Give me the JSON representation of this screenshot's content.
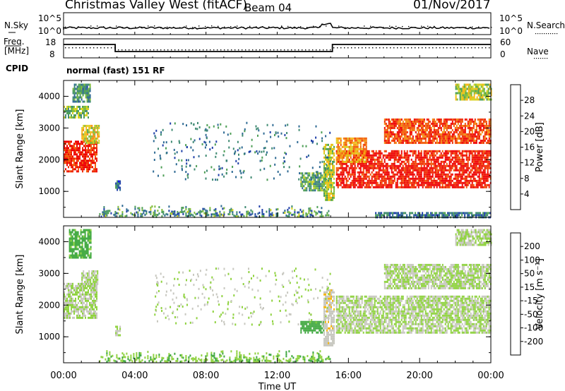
{
  "header": {
    "title": "Christmas Valley West (fitACF)",
    "beam": "Beam 04",
    "date": "01/Nov/2017"
  },
  "top_panels": {
    "nsky_label": "N.Sky",
    "nsky_ticks": [
      "10^5",
      "10^0"
    ],
    "nsearch_label": "N.Search",
    "nsearch_ticks": [
      "10^5",
      "10^0"
    ],
    "freq_label": "Freq.",
    "freq_unit": "[MHz]",
    "freq_ticks": [
      "18",
      "8"
    ],
    "nave_label": "Nave",
    "nave_ticks": [
      "60",
      "0"
    ],
    "cpid_label": "CPID",
    "cpid_value": "normal (fast) 151 RF"
  },
  "chart_data": [
    {
      "type": "heatmap",
      "panel": "power",
      "ylabel": "Slant Range [km]",
      "ylim": [
        180,
        4500
      ],
      "yticks": [
        "1000",
        "2000",
        "3000",
        "4000"
      ],
      "xlabel": "Time UT",
      "xlim": [
        0,
        24
      ],
      "xticks": [
        "00:00",
        "04:00",
        "08:00",
        "12:00",
        "16:00",
        "20:00",
        "00:00"
      ],
      "colorbar": {
        "label": "Power [dB]",
        "min": 0,
        "max": 32,
        "ticks": [
          "4",
          "8",
          "12",
          "16",
          "20",
          "24",
          "28"
        ],
        "colors": [
          "#0000ff",
          "#1f3fa8",
          "#2e6a93",
          "#3f8a72",
          "#4d9e55",
          "#7fbd3a",
          "#d6d21e",
          "#f5b614",
          "#f48a0c",
          "#f25a06",
          "#ef2a02",
          "#ee0000"
        ]
      },
      "blobs": [
        {
          "t0": 0.0,
          "t1": 1.9,
          "r0": 1600,
          "r1": 2600,
          "p": 29
        },
        {
          "t0": 1.0,
          "t1": 2.0,
          "r0": 2500,
          "r1": 3100,
          "p": 18
        },
        {
          "t0": 0.0,
          "t1": 1.4,
          "r0": 3300,
          "r1": 3700,
          "p": 14
        },
        {
          "t0": 0.5,
          "t1": 1.5,
          "r0": 3800,
          "r1": 4400,
          "p": 10
        },
        {
          "t0": 2.9,
          "t1": 3.2,
          "r0": 1050,
          "r1": 1350,
          "p": 7
        },
        {
          "t0": 13.3,
          "t1": 14.8,
          "r0": 1000,
          "r1": 1600,
          "p": 12
        },
        {
          "t0": 14.6,
          "t1": 15.2,
          "r0": 700,
          "r1": 2500,
          "p": 16
        },
        {
          "t0": 15.3,
          "t1": 24.0,
          "r0": 1100,
          "r1": 2300,
          "p": 30
        },
        {
          "t0": 15.3,
          "t1": 17.0,
          "r0": 1900,
          "r1": 2700,
          "p": 22
        },
        {
          "t0": 18.0,
          "t1": 24.0,
          "r0": 2500,
          "r1": 3300,
          "p": 27
        },
        {
          "t0": 22.0,
          "t1": 24.0,
          "r0": 3900,
          "r1": 4400,
          "p": 16
        },
        {
          "t0": 17.5,
          "t1": 24.0,
          "r0": 200,
          "r1": 350,
          "p": 8
        }
      ],
      "ground_scatter_band": {
        "t0": 2.0,
        "t1": 15.0,
        "r0": 180,
        "r1": 650,
        "p": 10
      }
    },
    {
      "type": "heatmap",
      "panel": "velocity",
      "ylabel": "Slant Range [km]",
      "ylim": [
        180,
        4500
      ],
      "yticks": [
        "1000",
        "2000",
        "3000",
        "4000"
      ],
      "xlabel": "Time UT",
      "xlim": [
        0,
        24
      ],
      "xticks": [
        "00:00",
        "04:00",
        "08:00",
        "12:00",
        "16:00",
        "20:00",
        "00:00"
      ],
      "colorbar": {
        "label": "Velocity [m s⁻¹]",
        "min": -250,
        "max": 250,
        "ticks": [
          "200",
          "100",
          "50",
          "15",
          "-15",
          "-50",
          "-100",
          "-200"
        ],
        "colors": [
          "#1f1fa8",
          "#2f4a9e",
          "#2f7a5a",
          "#3fa83f",
          "#8fd23f",
          "#c8c8c0",
          "#f5b614",
          "#f48a0c",
          "#f25a06",
          "#ee0000"
        ]
      },
      "blobs": [
        {
          "t0": 0.0,
          "t1": 1.9,
          "r0": 1600,
          "r1": 2700,
          "v": 0
        },
        {
          "t0": 1.0,
          "t1": 1.9,
          "r0": 2600,
          "r1": 3100,
          "v": 0
        },
        {
          "t0": 0.3,
          "t1": 1.5,
          "r0": 3500,
          "r1": 4400,
          "v": -60
        },
        {
          "t0": 2.9,
          "t1": 3.2,
          "r0": 1050,
          "r1": 1350,
          "v": 0
        },
        {
          "t0": 13.3,
          "t1": 14.6,
          "r0": 1100,
          "r1": 1500,
          "v": -70
        },
        {
          "t0": 14.6,
          "t1": 15.2,
          "r0": 700,
          "r1": 2500,
          "v": 40
        },
        {
          "t0": 15.3,
          "t1": 24.0,
          "r0": 1100,
          "r1": 2300,
          "v": 0
        },
        {
          "t0": 18.0,
          "t1": 24.0,
          "r0": 2500,
          "r1": 3300,
          "v": 0
        },
        {
          "t0": 22.0,
          "t1": 24.0,
          "r0": 3900,
          "r1": 4400,
          "v": 0
        }
      ],
      "ground_scatter_band": {
        "t0": 2.0,
        "t1": 15.0,
        "r0": 180,
        "r1": 550,
        "v": -40
      }
    }
  ]
}
